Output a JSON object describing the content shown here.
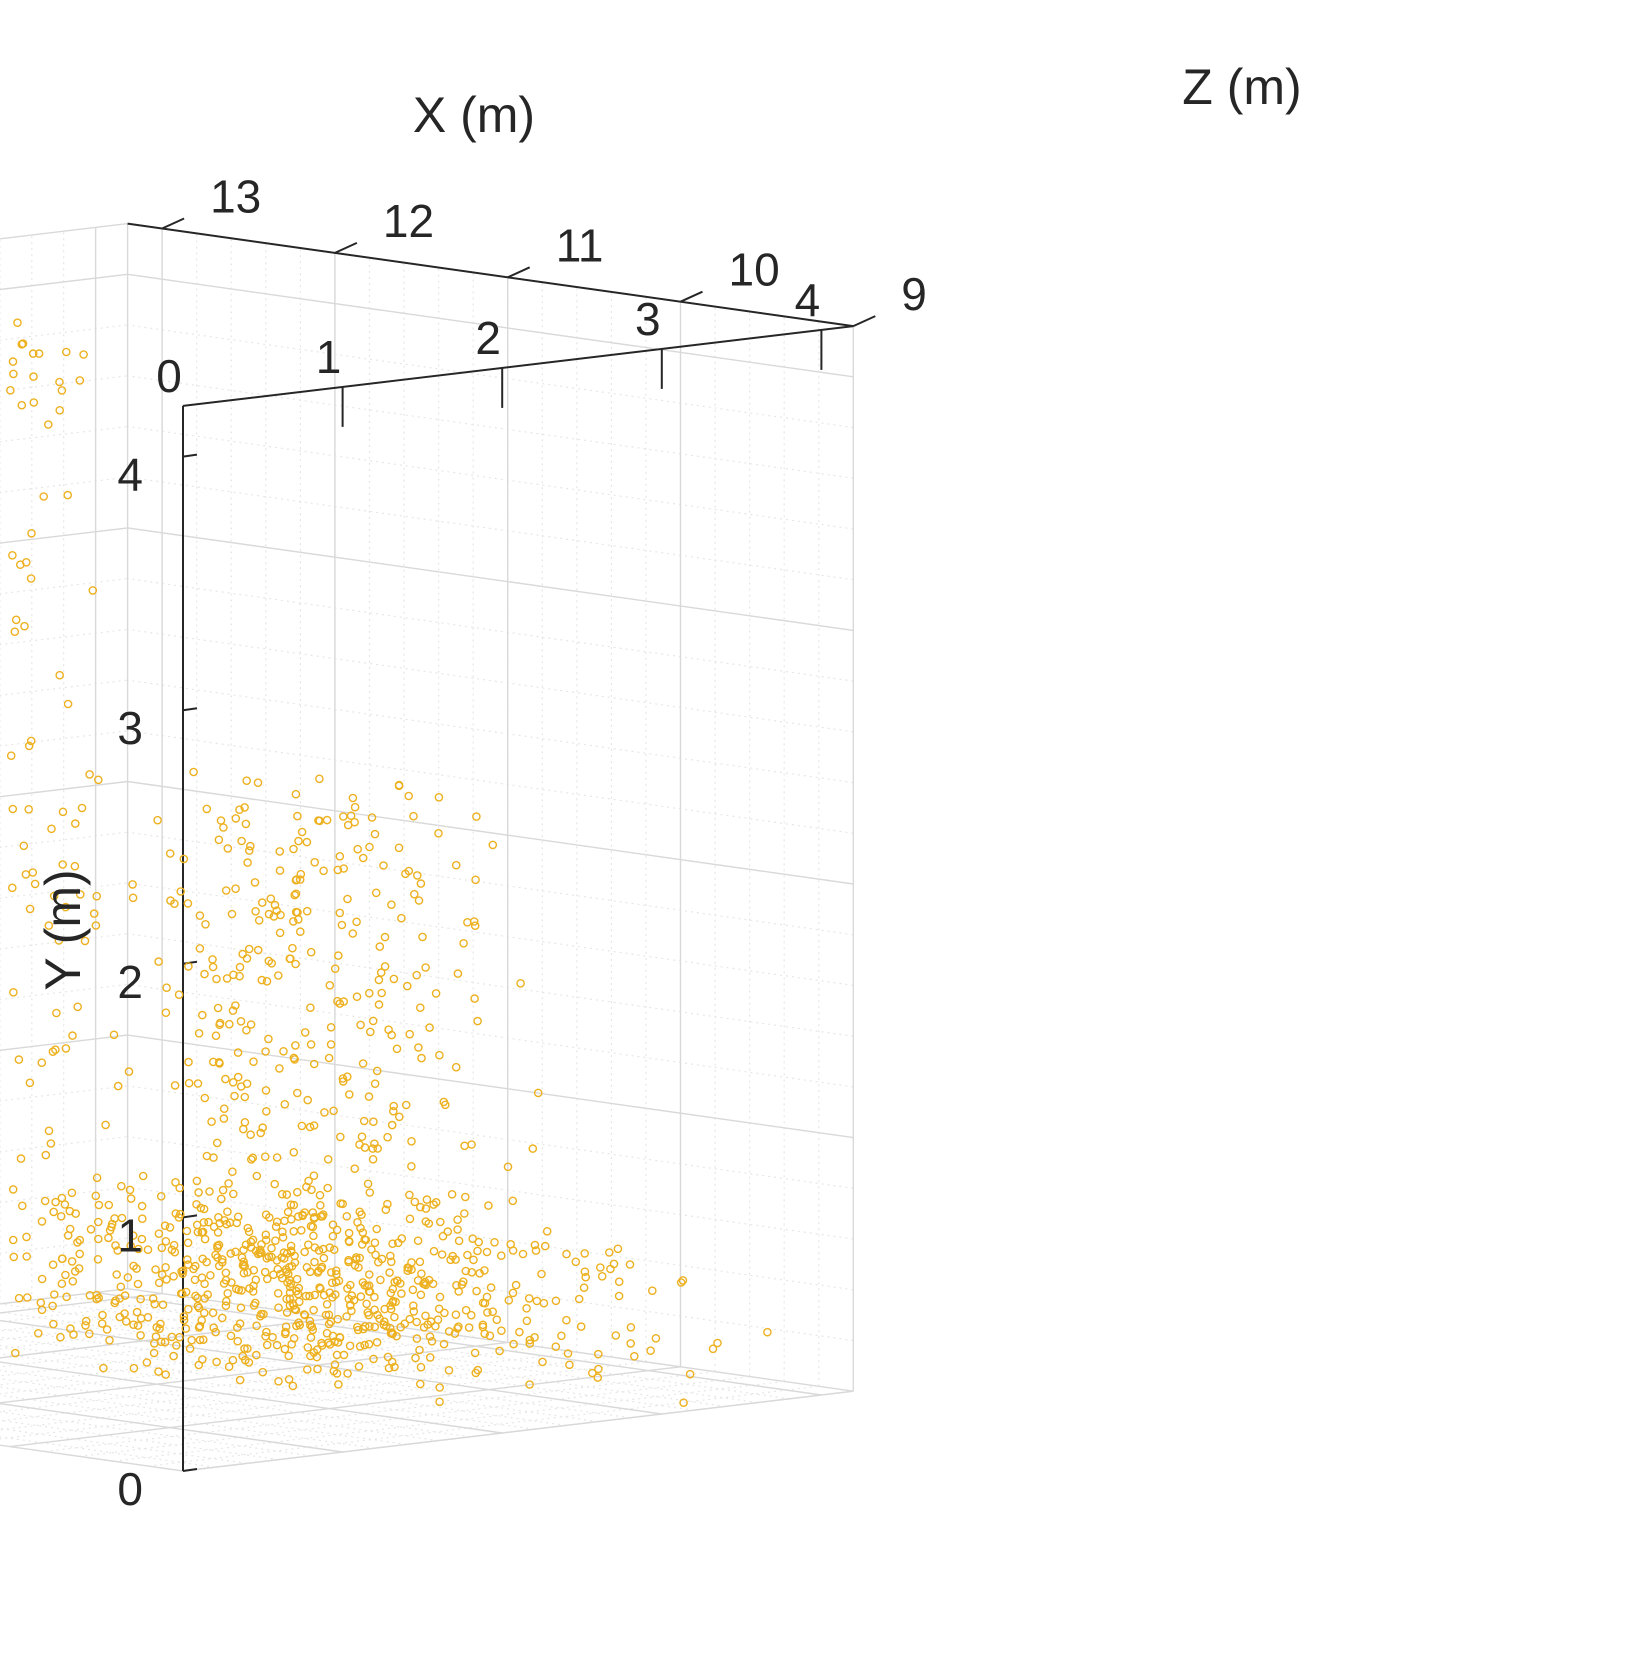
{
  "chart_data": {
    "type": "scatter",
    "projection": "3d",
    "title": "",
    "xlabel": "X (m)",
    "ylabel": "Y (m)",
    "zlabel": "Z (m)",
    "xlim": [
      0,
      4.2
    ],
    "ylim": [
      0,
      4.2
    ],
    "zlim": [
      9,
      13.2
    ],
    "x_ticks": [
      "0",
      "1",
      "2",
      "3",
      "4"
    ],
    "y_ticks": [
      "0",
      "1",
      "2",
      "3",
      "4"
    ],
    "z_ticks": [
      "9",
      "10",
      "11",
      "12",
      "13"
    ],
    "grid": "on (major solid, minor dotted)",
    "marker": "open circle",
    "marker_color": "#EDB120",
    "axis_color": "#262626",
    "grid_color": "#d9d9d9",
    "point_count_approx": 2200,
    "clusters": [
      {
        "name": "",
        "x": [
          0.5,
          3.5
        ],
        "y": [
          0.6,
          4.0
        ],
        "z": [
          12.6,
          13.1
        ],
        "n": 1150
      },
      {
        "name": "",
        "x": [
          3.2,
          4.2
        ],
        "y": [
          0.0,
          2.2
        ],
        "z": [
          10.5,
          13.0
        ],
        "n": 400
      },
      {
        "name": "",
        "x": [
          1.8,
          4.2
        ],
        "y": [
          0.0,
          0.6
        ],
        "z": [
          9.0,
          13.2
        ],
        "n": 650
      }
    ]
  }
}
